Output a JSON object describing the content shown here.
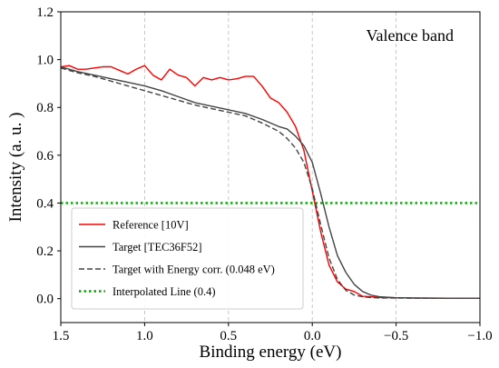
{
  "chart_data": {
    "type": "line",
    "annotation": "Valence band",
    "xlabel": "Binding energy (eV)",
    "ylabel": "Intensity (a. u. )",
    "xlim": [
      1.5,
      -1.0
    ],
    "ylim": [
      -0.1,
      1.2
    ],
    "x_reversed": true,
    "xticks": [
      1.5,
      1.0,
      0.5,
      0.0,
      -0.5,
      -1.0
    ],
    "xtick_labels": [
      "1.5",
      "1.0",
      "0.5",
      "0.0",
      "−0.5",
      "−1.0"
    ],
    "yticks": [
      0.0,
      0.2,
      0.4,
      0.6,
      0.8,
      1.0,
      1.2
    ],
    "ytick_labels": [
      "0.0",
      "0.2",
      "0.4",
      "0.6",
      "0.8",
      "1.0",
      "1.2"
    ],
    "vertical_grid": true,
    "horizontal_grid": false,
    "legend_position": "lower-left",
    "series": [
      {
        "name": "Reference [10V]",
        "color": "#ff0000",
        "style": "solid",
        "points": [
          [
            1.5,
            0.97
          ],
          [
            1.45,
            0.975
          ],
          [
            1.4,
            0.96
          ],
          [
            1.35,
            0.96
          ],
          [
            1.3,
            0.965
          ],
          [
            1.25,
            0.97
          ],
          [
            1.2,
            0.97
          ],
          [
            1.15,
            0.955
          ],
          [
            1.1,
            0.94
          ],
          [
            1.05,
            0.96
          ],
          [
            1.0,
            0.975
          ],
          [
            0.95,
            0.935
          ],
          [
            0.9,
            0.915
          ],
          [
            0.85,
            0.96
          ],
          [
            0.8,
            0.935
          ],
          [
            0.75,
            0.925
          ],
          [
            0.7,
            0.89
          ],
          [
            0.65,
            0.925
          ],
          [
            0.6,
            0.915
          ],
          [
            0.55,
            0.925
          ],
          [
            0.5,
            0.915
          ],
          [
            0.45,
            0.92
          ],
          [
            0.4,
            0.93
          ],
          [
            0.35,
            0.93
          ],
          [
            0.3,
            0.89
          ],
          [
            0.25,
            0.84
          ],
          [
            0.2,
            0.82
          ],
          [
            0.15,
            0.78
          ],
          [
            0.1,
            0.72
          ],
          [
            0.05,
            0.62
          ],
          [
            0.0,
            0.45
          ],
          [
            -0.05,
            0.28
          ],
          [
            -0.1,
            0.14
          ],
          [
            -0.15,
            0.07
          ],
          [
            -0.2,
            0.04
          ],
          [
            -0.25,
            0.03
          ],
          [
            -0.3,
            0.01
          ],
          [
            -0.35,
            0.008
          ],
          [
            -0.4,
            0.005
          ],
          [
            -0.5,
            0.004
          ],
          [
            -0.6,
            0.003
          ],
          [
            -0.8,
            0.002
          ],
          [
            -1.0,
            0.002
          ]
        ]
      },
      {
        "name": "Target [TEC36F52]",
        "color": "#444444",
        "style": "solid",
        "points": [
          [
            1.5,
            0.97
          ],
          [
            1.4,
            0.95
          ],
          [
            1.3,
            0.935
          ],
          [
            1.2,
            0.92
          ],
          [
            1.1,
            0.905
          ],
          [
            1.0,
            0.89
          ],
          [
            0.9,
            0.87
          ],
          [
            0.8,
            0.845
          ],
          [
            0.7,
            0.82
          ],
          [
            0.6,
            0.805
          ],
          [
            0.5,
            0.79
          ],
          [
            0.4,
            0.775
          ],
          [
            0.3,
            0.75
          ],
          [
            0.2,
            0.72
          ],
          [
            0.15,
            0.71
          ],
          [
            0.1,
            0.68
          ],
          [
            0.05,
            0.64
          ],
          [
            0.0,
            0.57
          ],
          [
            -0.05,
            0.44
          ],
          [
            -0.1,
            0.3
          ],
          [
            -0.15,
            0.18
          ],
          [
            -0.2,
            0.11
          ],
          [
            -0.25,
            0.06
          ],
          [
            -0.3,
            0.03
          ],
          [
            -0.35,
            0.015
          ],
          [
            -0.4,
            0.008
          ],
          [
            -0.5,
            0.004
          ],
          [
            -0.6,
            0.003
          ],
          [
            -0.8,
            0.002
          ],
          [
            -1.0,
            0.002
          ]
        ]
      },
      {
        "name": "Target with Energy corr. (0.048 eV)",
        "color": "#444444",
        "style": "dashed",
        "points": [
          [
            1.5,
            0.965
          ],
          [
            1.4,
            0.945
          ],
          [
            1.3,
            0.93
          ],
          [
            1.2,
            0.91
          ],
          [
            1.1,
            0.89
          ],
          [
            1.0,
            0.87
          ],
          [
            0.9,
            0.85
          ],
          [
            0.8,
            0.83
          ],
          [
            0.7,
            0.81
          ],
          [
            0.6,
            0.795
          ],
          [
            0.5,
            0.78
          ],
          [
            0.4,
            0.765
          ],
          [
            0.3,
            0.735
          ],
          [
            0.2,
            0.7
          ],
          [
            0.15,
            0.67
          ],
          [
            0.1,
            0.63
          ],
          [
            0.05,
            0.57
          ],
          [
            0.0,
            0.46
          ],
          [
            -0.05,
            0.31
          ],
          [
            -0.1,
            0.17
          ],
          [
            -0.15,
            0.08
          ],
          [
            -0.2,
            0.035
          ],
          [
            -0.25,
            0.015
          ],
          [
            -0.3,
            0.008
          ],
          [
            -0.35,
            0.005
          ],
          [
            -0.4,
            0.003
          ],
          [
            -0.6,
            0.002
          ],
          [
            -1.0,
            0.002
          ]
        ]
      },
      {
        "name": "Interpolated Line (0.4)",
        "color": "#00aa00",
        "style": "dotted",
        "points": [
          [
            1.5,
            0.4
          ],
          [
            -1.0,
            0.4
          ]
        ]
      }
    ]
  }
}
